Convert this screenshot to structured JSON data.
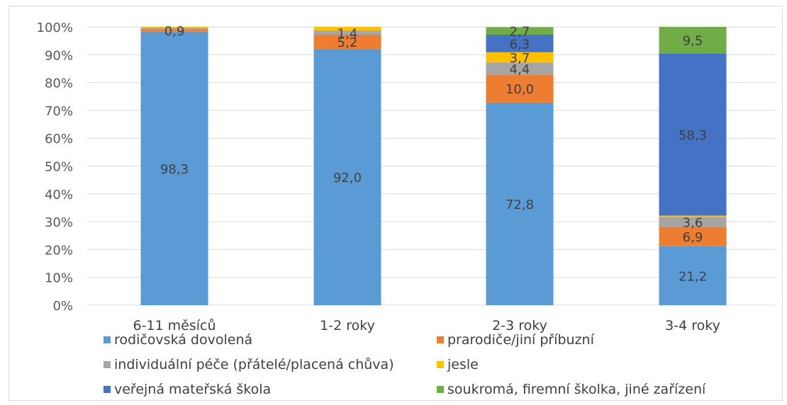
{
  "chart_data": {
    "type": "bar",
    "stacked": true,
    "categories": [
      "6-11 měsíců",
      "1-2 roky",
      "2-3 roky",
      "3-4 roky"
    ],
    "y_ticks": [
      "0%",
      "10%",
      "20%",
      "30%",
      "40%",
      "50%",
      "60%",
      "70%",
      "80%",
      "90%",
      "100%"
    ],
    "ylim": [
      0,
      100
    ],
    "grid": true,
    "legend_position": "bottom",
    "series": [
      {
        "name": "rodičovská dovolená",
        "color": "#5b9bd5",
        "values": [
          98.3,
          92.0,
          72.8,
          21.2
        ],
        "labels": [
          "98,3",
          "92,0",
          "72,8",
          "21,2"
        ]
      },
      {
        "name": "prarodiče/jiní příbuzní",
        "color": "#ed7d31",
        "values": [
          0.9,
          5.2,
          10.0,
          6.9
        ],
        "labels": [
          "0,9",
          "5,2",
          "10,0",
          "6,9"
        ]
      },
      {
        "name": "individuální péče (přátelé/placená chůva)",
        "color": "#a5a5a5",
        "values": [
          0.5,
          1.4,
          4.4,
          3.6
        ],
        "labels": [
          "",
          "1,4",
          "4,4",
          "3,6"
        ]
      },
      {
        "name": "jesle",
        "color": "#ffc000",
        "values": [
          0.3,
          1.4,
          3.7,
          0.5
        ],
        "labels": [
          "",
          "",
          "3,7",
          ""
        ]
      },
      {
        "name": "veřejná mateřská škola",
        "color": "#4472c4",
        "values": [
          0.0,
          0.0,
          6.3,
          58.3
        ],
        "labels": [
          "",
          "",
          "6,3",
          "58,3"
        ]
      },
      {
        "name": "soukromá, firemní školka, jiné zařízení",
        "color": "#70ad47",
        "values": [
          0.0,
          0.0,
          2.7,
          9.5
        ],
        "labels": [
          "",
          "",
          "2,7",
          "9,5"
        ]
      }
    ]
  }
}
